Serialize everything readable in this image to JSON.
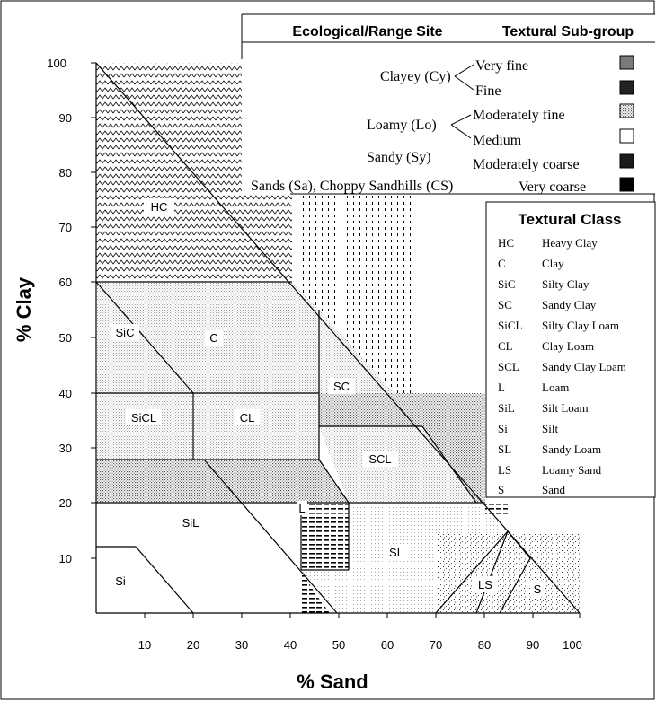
{
  "legend_top": {
    "col1_header": "Ecological/Range Site",
    "col2_header": "Textural Sub-group",
    "sites": [
      "Clayey (Cy)",
      "Loamy (Lo)",
      "Sandy (Sy)",
      "Sands (Sa), Choppy Sandhills (CS)"
    ],
    "subgroups": [
      "Very fine",
      "Fine",
      "Moderately fine",
      "Medium",
      "Moderately coarse",
      "Very coarse"
    ]
  },
  "legend_classes": {
    "title": "Textural Class",
    "items": [
      {
        "code": "HC",
        "name": "Heavy Clay"
      },
      {
        "code": "C",
        "name": "Clay"
      },
      {
        "code": "SiC",
        "name": "Silty Clay"
      },
      {
        "code": "SC",
        "name": "Sandy Clay"
      },
      {
        "code": "SiCL",
        "name": "Silty Clay Loam"
      },
      {
        "code": "CL",
        "name": "Clay Loam"
      },
      {
        "code": "SCL",
        "name": "Sandy Clay Loam"
      },
      {
        "code": "L",
        "name": "Loam"
      },
      {
        "code": "SiL",
        "name": "Silt Loam"
      },
      {
        "code": "Si",
        "name": "Silt"
      },
      {
        "code": "SL",
        "name": "Sandy Loam"
      },
      {
        "code": "LS",
        "name": "Loamy Sand"
      },
      {
        "code": "S",
        "name": "Sand"
      }
    ]
  },
  "axes": {
    "x_label": "% Sand",
    "y_label": "% Clay",
    "x_ticks": [
      "10",
      "20",
      "30",
      "40",
      "50",
      "60",
      "70",
      "80",
      "90",
      "100"
    ],
    "y_ticks": [
      "10",
      "20",
      "30",
      "40",
      "50",
      "60",
      "70",
      "80",
      "90",
      "100"
    ]
  },
  "region_labels": [
    "HC",
    "C",
    "SiC",
    "SC",
    "SiCL",
    "CL",
    "SCL",
    "L",
    "SiL",
    "SL",
    "Si",
    "LS",
    "S"
  ]
}
